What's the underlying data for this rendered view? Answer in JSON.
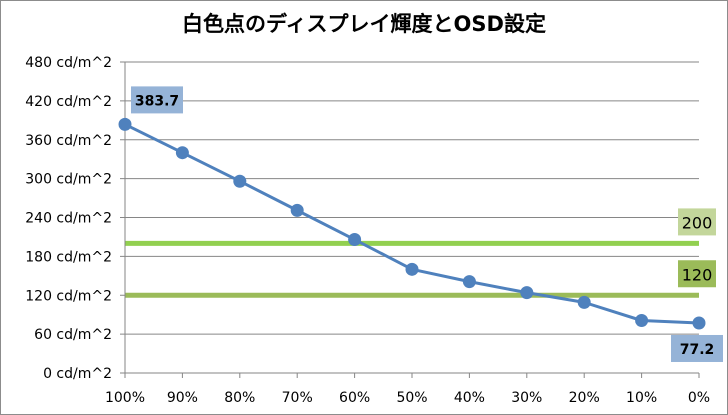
{
  "chart_data": {
    "type": "line",
    "title": "白色点のディスプレイ輝度とOSD設定",
    "xlabel": "",
    "ylabel": "",
    "categories": [
      "100%",
      "90%",
      "80%",
      "70%",
      "60%",
      "50%",
      "40%",
      "30%",
      "20%",
      "10%",
      "0%"
    ],
    "series": [
      {
        "values": [
          383.7,
          340,
          296,
          251,
          206,
          160,
          141,
          124,
          109,
          81,
          77.2
        ],
        "color": "#4f81bd"
      }
    ],
    "y_tick_labels": [
      "0 cd/m^2",
      "60 cd/m^2",
      "120 cd/m^2",
      "180 cd/m^2",
      "240 cd/m^2",
      "300 cd/m^2",
      "360 cd/m^2",
      "420 cd/m^2",
      "480 cd/m^2"
    ],
    "ylim": [
      0,
      480
    ],
    "y_step": 60,
    "grid": "horizontal",
    "legend": "none",
    "data_labels": [
      {
        "index": 0,
        "text": "383.7",
        "position": "above-right"
      },
      {
        "index": 10,
        "text": "77.2",
        "position": "below-left"
      }
    ],
    "reference_lines": [
      {
        "value": 200,
        "label": "200",
        "color": "#92d050"
      },
      {
        "value": 120,
        "label": "120",
        "color": "#9bbb59"
      }
    ],
    "colors": {
      "series_line": "#4f81bd",
      "data_label_bg": "#95b3d7",
      "ref_label_200_bg": "#c3d69b",
      "ref_label_120_bg": "#9bbb59",
      "grid": "#868686",
      "axis": "#868686"
    }
  }
}
